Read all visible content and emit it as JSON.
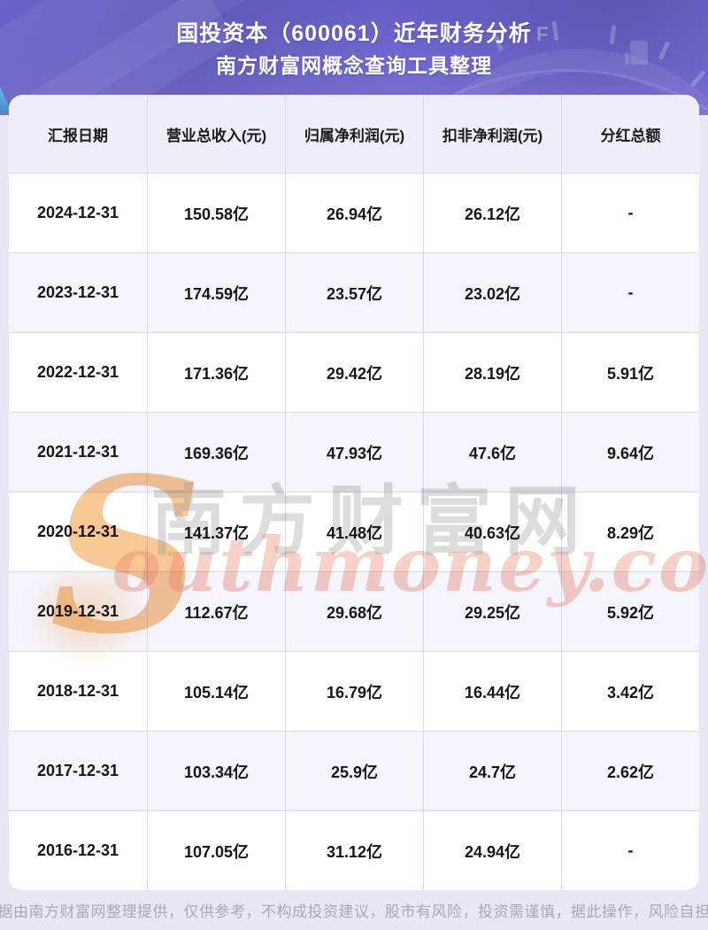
{
  "header": {
    "title_line1": "国投资本（600061）近年财务分析",
    "title_line2": "南方财富网概念查询工具整理"
  },
  "watermark": {
    "initial": "S",
    "script": "outhmoney.com",
    "cjk": "南方财富网"
  },
  "footer": {
    "text": "数据由南方财富网整理提供，仅供参考，不构成投资建议，股市有风险，投资需谨慎，据此操作，风险自担。"
  },
  "colors": {
    "banner_purple_dark": "#6058ba",
    "banner_purple_light": "#7b70da",
    "page_background": "#eae7f4",
    "table_header_bg": "#efedf8",
    "row_stripe": "#f5f3fb",
    "grid_line": "#dbd8ec",
    "text_ink": "#161616",
    "footer_text": "#a9a6b5",
    "watermark_orange": "#f39e4a",
    "watermark_coral": "#e97c65",
    "watermark_gray": "#d9d9dc"
  },
  "chart_data": {
    "type": "table",
    "title": "国投资本（600061）近年财务分析",
    "subtitle": "南方财富网概念查询工具整理",
    "unit": "亿",
    "columns": [
      "汇报日期",
      "营业总收入(元)",
      "归属净利润(元)",
      "扣非净利润(元)",
      "分红总额"
    ],
    "rows": [
      [
        "2024-12-31",
        "150.58亿",
        "26.94亿",
        "26.12亿",
        "-"
      ],
      [
        "2023-12-31",
        "174.59亿",
        "23.57亿",
        "23.02亿",
        "-"
      ],
      [
        "2022-12-31",
        "171.36亿",
        "29.42亿",
        "28.19亿",
        "5.91亿"
      ],
      [
        "2021-12-31",
        "169.36亿",
        "47.93亿",
        "47.6亿",
        "9.64亿"
      ],
      [
        "2020-12-31",
        "141.37亿",
        "41.48亿",
        "40.63亿",
        "8.29亿"
      ],
      [
        "2019-12-31",
        "112.67亿",
        "29.68亿",
        "29.25亿",
        "5.92亿"
      ],
      [
        "2018-12-31",
        "105.14亿",
        "16.79亿",
        "16.44亿",
        "3.42亿"
      ],
      [
        "2017-12-31",
        "103.34亿",
        "25.9亿",
        "24.7亿",
        "2.62亿"
      ],
      [
        "2016-12-31",
        "107.05亿",
        "31.12亿",
        "24.94亿",
        "-"
      ]
    ],
    "categories": [
      "2024-12-31",
      "2023-12-31",
      "2022-12-31",
      "2021-12-31",
      "2020-12-31",
      "2019-12-31",
      "2018-12-31",
      "2017-12-31",
      "2016-12-31"
    ],
    "series": [
      {
        "name": "营业总收入(亿元)",
        "values": [
          150.58,
          174.59,
          171.36,
          169.36,
          141.37,
          112.67,
          105.14,
          103.34,
          107.05
        ]
      },
      {
        "name": "归属净利润(亿元)",
        "values": [
          26.94,
          23.57,
          29.42,
          47.93,
          41.48,
          29.68,
          16.79,
          25.9,
          31.12
        ]
      },
      {
        "name": "扣非净利润(亿元)",
        "values": [
          26.12,
          23.02,
          28.19,
          47.6,
          40.63,
          29.25,
          16.44,
          24.7,
          24.94
        ]
      },
      {
        "name": "分红总额(亿元)",
        "values": [
          null,
          null,
          5.91,
          9.64,
          8.29,
          5.92,
          3.42,
          2.62,
          null
        ]
      }
    ]
  }
}
